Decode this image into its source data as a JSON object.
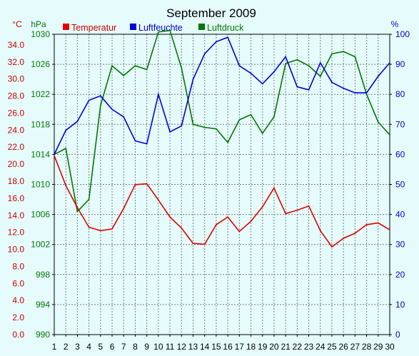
{
  "chart_data": {
    "type": "line",
    "title": "September 2009",
    "left_unit": "°C",
    "pressure_unit": "hPa",
    "right_unit": "%",
    "legend_position": "top",
    "grid": true,
    "x": [
      1,
      2,
      3,
      4,
      5,
      6,
      7,
      8,
      9,
      10,
      11,
      12,
      13,
      14,
      15,
      16,
      17,
      18,
      19,
      20,
      21,
      22,
      23,
      24,
      25,
      26,
      27,
      28,
      29,
      30
    ],
    "x_ticks": [
      "1",
      "2",
      "3",
      "4",
      "5",
      "6",
      "7",
      "8",
      "9",
      "10",
      "11",
      "12",
      "13",
      "14",
      "15",
      "16",
      "17",
      "18",
      "19",
      "20",
      "21",
      "22",
      "23",
      "24",
      "25",
      "26",
      "27",
      "28",
      "29",
      "30"
    ],
    "temp_ticks": [
      "0.0",
      "2.0",
      "4.0",
      "6.0",
      "8.0",
      "10.0",
      "12.0",
      "14.0",
      "16.0",
      "18.0",
      "20.0",
      "22.0",
      "24.0",
      "26.0",
      "28.0",
      "30.0",
      "32.0",
      "34.0"
    ],
    "pressure_ticks": [
      "990",
      "994",
      "998",
      "1002",
      "1006",
      "1010",
      "1014",
      "1018",
      "1022",
      "1026",
      "1030"
    ],
    "humidity_ticks": [
      "0",
      "10",
      "20",
      "30",
      "40",
      "50",
      "60",
      "70",
      "80",
      "90",
      "100"
    ],
    "ylim_temperature": [
      0,
      35.25
    ],
    "ylim_pressure": [
      990,
      1030
    ],
    "ylim_humidity": [
      0,
      100
    ],
    "colors": {
      "background": "#e6fcfc",
      "plot_background": "#e6fcfc",
      "grid": "#7a7a7a",
      "axis": "#000000",
      "temperature": "#e00000",
      "humidity": "#0000dd",
      "pressure": "#007700",
      "left_axis_text": "#cc0000",
      "pressure_axis_text": "#007700",
      "right_axis_text": "#0000cc"
    },
    "series": [
      {
        "name": "Temperatur",
        "axis": "temperature",
        "color": "#e00000",
        "values": [
          21.0,
          17.5,
          14.9,
          12.6,
          12.2,
          12.4,
          14.8,
          17.6,
          17.7,
          15.8,
          13.8,
          12.5,
          10.7,
          10.6,
          12.9,
          13.8,
          12.1,
          13.3,
          15.0,
          17.2,
          14.2,
          14.6,
          15.1,
          12.2,
          10.3,
          11.3,
          11.9,
          12.9,
          13.1,
          12.3
        ]
      },
      {
        "name": "Luftfeuchte",
        "axis": "humidity",
        "color": "#0000dd",
        "values": [
          60.0,
          68.0,
          71.0,
          78.0,
          79.5,
          75.0,
          72.5,
          64.5,
          63.5,
          80.0,
          67.5,
          69.5,
          85.0,
          93.5,
          97.5,
          99.0,
          89.5,
          87.0,
          83.5,
          87.5,
          92.5,
          82.5,
          81.5,
          90.5,
          84.0,
          82.0,
          80.5,
          80.5,
          86.0,
          90.5
        ]
      },
      {
        "name": "Luftdruck",
        "axis": "pressure",
        "color": "#007700",
        "values": [
          1014.0,
          1014.8,
          1006.4,
          1008.0,
          1020.5,
          1025.8,
          1024.5,
          1025.8,
          1025.3,
          1030.3,
          1030.5,
          1025.5,
          1018.0,
          1017.6,
          1017.4,
          1015.6,
          1018.6,
          1019.3,
          1016.8,
          1019.0,
          1026.1,
          1026.6,
          1025.8,
          1024.4,
          1027.4,
          1027.7,
          1027.0,
          1022.0,
          1018.3,
          1016.6
        ]
      }
    ]
  }
}
